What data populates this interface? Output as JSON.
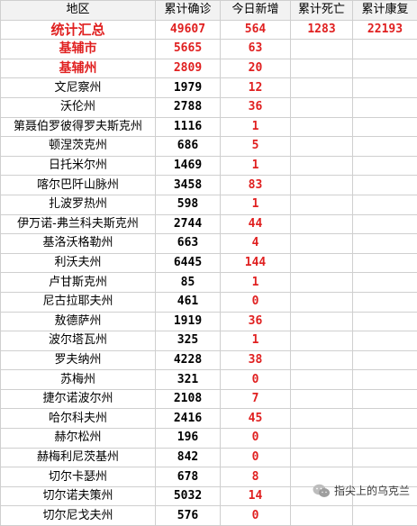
{
  "headers": [
    "地区",
    "累计确诊",
    "今日新增",
    "累计死亡",
    "累计康复"
  ],
  "total": {
    "name": "统计汇总",
    "confirmed": "49607",
    "new": "564",
    "deaths": "1283",
    "recovered": "22193"
  },
  "rows": [
    {
      "name": "基辅市",
      "confirmed": "5665",
      "new": "63",
      "style": "red"
    },
    {
      "name": "基辅州",
      "confirmed": "2809",
      "new": "20",
      "style": "red"
    },
    {
      "name": "文尼察州",
      "confirmed": "1979",
      "new": "12",
      "style": ""
    },
    {
      "name": "沃伦州",
      "confirmed": "2788",
      "new": "36",
      "style": ""
    },
    {
      "name": "第聂伯罗彼得罗夫斯克州",
      "confirmed": "1116",
      "new": "1",
      "style": ""
    },
    {
      "name": "顿涅茨克州",
      "confirmed": "686",
      "new": "5",
      "style": ""
    },
    {
      "name": "日托米尔州",
      "confirmed": "1469",
      "new": "1",
      "style": ""
    },
    {
      "name": "喀尔巴阡山脉州",
      "confirmed": "3458",
      "new": "83",
      "style": ""
    },
    {
      "name": "扎波罗热州",
      "confirmed": "598",
      "new": "1",
      "style": ""
    },
    {
      "name": "伊万诺-弗兰科夫斯克州",
      "confirmed": "2744",
      "new": "44",
      "style": ""
    },
    {
      "name": "基洛沃格勒州",
      "confirmed": "663",
      "new": "4",
      "style": ""
    },
    {
      "name": "利沃夫州",
      "confirmed": "6445",
      "new": "144",
      "style": ""
    },
    {
      "name": "卢甘斯克州",
      "confirmed": "85",
      "new": "1",
      "style": ""
    },
    {
      "name": "尼古拉耶夫州",
      "confirmed": "461",
      "new": "0",
      "style": ""
    },
    {
      "name": "敖德萨州",
      "confirmed": "1919",
      "new": "36",
      "style": ""
    },
    {
      "name": "波尔塔瓦州",
      "confirmed": "325",
      "new": "1",
      "style": ""
    },
    {
      "name": "罗夫纳州",
      "confirmed": "4228",
      "new": "38",
      "style": ""
    },
    {
      "name": "苏梅州",
      "confirmed": "321",
      "new": "0",
      "style": ""
    },
    {
      "name": "捷尔诺波尔州",
      "confirmed": "2108",
      "new": "7",
      "style": ""
    },
    {
      "name": "哈尔科夫州",
      "confirmed": "2416",
      "new": "45",
      "style": ""
    },
    {
      "name": "赫尔松州",
      "confirmed": "196",
      "new": "0",
      "style": ""
    },
    {
      "name": "赫梅利尼茨基州",
      "confirmed": "842",
      "new": "0",
      "style": ""
    },
    {
      "name": "切尔卡瑟州",
      "confirmed": "678",
      "new": "8",
      "style": ""
    },
    {
      "name": "切尔诺夫策州",
      "confirmed": "5032",
      "new": "14",
      "style": ""
    },
    {
      "name": "切尔尼戈夫州",
      "confirmed": "576",
      "new": "0",
      "style": ""
    }
  ],
  "watermark": {
    "text": "指尖上的乌克兰",
    "icon": "wechat-icon"
  },
  "colors": {
    "accent_red": "#e02020",
    "header_bg": "#f2f2f2",
    "grid_line": "#cfcfcf"
  }
}
